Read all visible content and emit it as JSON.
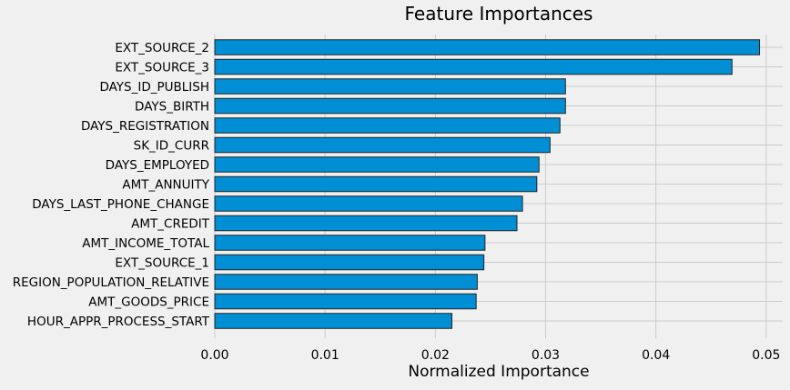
{
  "chart_data": {
    "type": "bar",
    "orientation": "horizontal",
    "title": "Feature Importances",
    "xlabel": "Normalized Importance",
    "ylabel": "",
    "xlim": [
      0,
      0.0515
    ],
    "xticks": [
      0.0,
      0.01,
      0.02,
      0.03,
      0.04,
      0.05
    ],
    "xtick_labels": [
      "0.00",
      "0.01",
      "0.02",
      "0.03",
      "0.04",
      "0.05"
    ],
    "grid": true,
    "bar_color": "#008fd5",
    "edge_color": "#222222",
    "background": "#f0f0f0",
    "categories": [
      "EXT_SOURCE_2",
      "EXT_SOURCE_3",
      "DAYS_ID_PUBLISH",
      "DAYS_BIRTH",
      "DAYS_REGISTRATION",
      "SK_ID_CURR",
      "DAYS_EMPLOYED",
      "AMT_ANNUITY",
      "DAYS_LAST_PHONE_CHANGE",
      "AMT_CREDIT",
      "AMT_INCOME_TOTAL",
      "EXT_SOURCE_1",
      "REGION_POPULATION_RELATIVE",
      "AMT_GOODS_PRICE",
      "HOUR_APPR_PROCESS_START"
    ],
    "values": [
      0.0494,
      0.0469,
      0.0318,
      0.0318,
      0.0313,
      0.0304,
      0.0294,
      0.0292,
      0.0279,
      0.0274,
      0.0245,
      0.0244,
      0.0238,
      0.0237,
      0.0215
    ]
  }
}
